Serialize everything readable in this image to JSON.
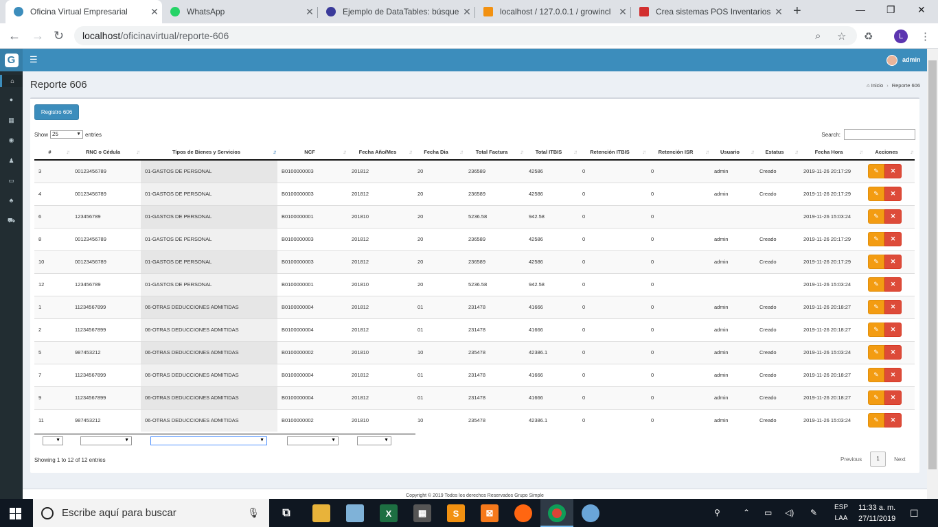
{
  "browser": {
    "tabs": [
      {
        "title": "Oficina Virtual Empresarial",
        "color": "#3c8dbc"
      },
      {
        "title": "WhatsApp",
        "color": "#25d366"
      },
      {
        "title": "Ejemplo de DataTables: búsqueda",
        "color": "#3a3a9a"
      },
      {
        "title": "localhost / 127.0.0.1 / growincl",
        "color": "#f29111"
      },
      {
        "title": "Crea sistemas POS Inventarios",
        "color": "#d22f2f"
      }
    ],
    "url_host": "localhost",
    "url_path": "/oficinavirtual/reporte-606",
    "profile_letter": "L"
  },
  "app": {
    "logo_letter": "G",
    "user": "admin",
    "page_title": "Reporte 606",
    "breadcrumb": {
      "home": "Inicio",
      "current": "Reporte 606"
    },
    "register_button": "Registro 606",
    "show_label": "Show",
    "entries_value": "25",
    "entries_label": "entries",
    "search_label": "Search:",
    "columns": [
      "#",
      "RNC o Cédula",
      "Tipos de Bienes y Servicios",
      "NCF",
      "Fecha Año/Mes",
      "Fecha Dia",
      "Total Factura",
      "Total ITBIS",
      "Retención ITBIS",
      "Retención ISR",
      "Usuario",
      "Estatus",
      "Fecha Hora",
      "Acciones"
    ],
    "rows": [
      [
        "3",
        "00123456789",
        "01-GASTOS DE PERSONAL",
        "B0100000003",
        "201812",
        "20",
        "236589",
        "42586",
        "0",
        "0",
        "admin",
        "Creado",
        "2019-11-26 20:17:29"
      ],
      [
        "4",
        "00123456789",
        "01-GASTOS DE PERSONAL",
        "B0100000003",
        "201812",
        "20",
        "236589",
        "42586",
        "0",
        "0",
        "admin",
        "Creado",
        "2019-11-26 20:17:29"
      ],
      [
        "6",
        "123456789",
        "01-GASTOS DE PERSONAL",
        "B0100000001",
        "201810",
        "20",
        "5236.58",
        "942.58",
        "0",
        "0",
        "",
        "",
        "2019-11-26 15:03:24"
      ],
      [
        "8",
        "00123456789",
        "01-GASTOS DE PERSONAL",
        "B0100000003",
        "201812",
        "20",
        "236589",
        "42586",
        "0",
        "0",
        "admin",
        "Creado",
        "2019-11-26 20:17:29"
      ],
      [
        "10",
        "00123456789",
        "01-GASTOS DE PERSONAL",
        "B0100000003",
        "201812",
        "20",
        "236589",
        "42586",
        "0",
        "0",
        "admin",
        "Creado",
        "2019-11-26 20:17:29"
      ],
      [
        "12",
        "123456789",
        "01-GASTOS DE PERSONAL",
        "B0100000001",
        "201810",
        "20",
        "5236.58",
        "942.58",
        "0",
        "0",
        "",
        "",
        "2019-11-26 15:03:24"
      ],
      [
        "1",
        "11234567899",
        "06-OTRAS DEDUCCIONES ADMITIDAS",
        "B0100000004",
        "201812",
        "01",
        "231478",
        "41666",
        "0",
        "0",
        "admin",
        "Creado",
        "2019-11-26 20:18:27"
      ],
      [
        "2",
        "11234567899",
        "06-OTRAS DEDUCCIONES ADMITIDAS",
        "B0100000004",
        "201812",
        "01",
        "231478",
        "41666",
        "0",
        "0",
        "admin",
        "Creado",
        "2019-11-26 20:18:27"
      ],
      [
        "5",
        "987453212",
        "06-OTRAS DEDUCCIONES ADMITIDAS",
        "B0100000002",
        "201810",
        "10",
        "235478",
        "42386.1",
        "0",
        "0",
        "admin",
        "Creado",
        "2019-11-26 15:03:24"
      ],
      [
        "7",
        "11234567899",
        "06-OTRAS DEDUCCIONES ADMITIDAS",
        "B0100000004",
        "201812",
        "01",
        "231478",
        "41666",
        "0",
        "0",
        "admin",
        "Creado",
        "2019-11-26 20:18:27"
      ],
      [
        "9",
        "11234567899",
        "06-OTRAS DEDUCCIONES ADMITIDAS",
        "B0100000004",
        "201812",
        "01",
        "231478",
        "41666",
        "0",
        "0",
        "admin",
        "Creado",
        "2019-11-26 20:18:27"
      ],
      [
        "11",
        "987453212",
        "06-OTRAS DEDUCCIONES ADMITIDAS",
        "B0100000002",
        "201810",
        "10",
        "235478",
        "42386.1",
        "0",
        "0",
        "admin",
        "Creado",
        "2019-11-26 15:03:24"
      ]
    ],
    "info": "Showing 1 to 12 of 12 entries",
    "pager": {
      "prev": "Previous",
      "page": "1",
      "next": "Next"
    },
    "footer": "Copyright © 2019 Todos los derechos Reservados Grupo Simple"
  },
  "taskbar": {
    "search_placeholder": "Escribe aquí para buscar",
    "lang1": "ESP",
    "lang2": "LAA",
    "time": "11:33 a. m.",
    "date": "27/11/2019"
  }
}
